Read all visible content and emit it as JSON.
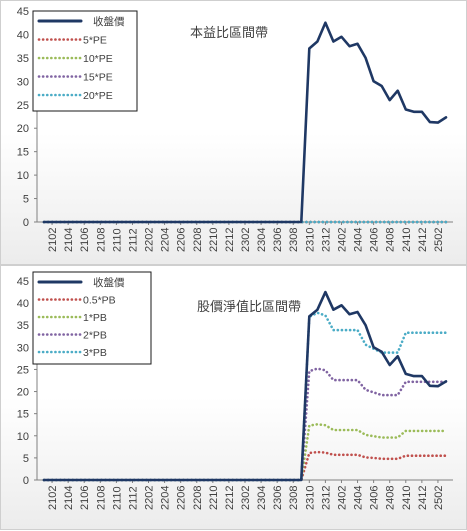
{
  "chart_data": [
    {
      "type": "line",
      "title": "本益比區間帶",
      "xlabel": "",
      "ylabel": "",
      "ylim": [
        0,
        45
      ],
      "yticks": [
        0,
        5,
        10,
        15,
        20,
        25,
        30,
        35,
        40,
        45
      ],
      "x_tick_labels": [
        "2102",
        "2104",
        "2106",
        "2108",
        "2110",
        "2112",
        "2202",
        "2204",
        "2206",
        "2208",
        "2210",
        "2212",
        "2302",
        "2304",
        "2306",
        "2308",
        "2310",
        "2312",
        "2402",
        "2404",
        "2406",
        "2408",
        "2410",
        "2412",
        "2502"
      ],
      "x": [
        "2101",
        "2102",
        "2103",
        "2104",
        "2105",
        "2106",
        "2107",
        "2108",
        "2109",
        "2110",
        "2111",
        "2112",
        "2201",
        "2202",
        "2203",
        "2204",
        "2205",
        "2206",
        "2207",
        "2208",
        "2209",
        "2210",
        "2211",
        "2212",
        "2301",
        "2302",
        "2303",
        "2304",
        "2305",
        "2306",
        "2307",
        "2308",
        "2309",
        "2310",
        "2311",
        "2312",
        "2401",
        "2402",
        "2403",
        "2404",
        "2405",
        "2406",
        "2407",
        "2408",
        "2409",
        "2410",
        "2411",
        "2412",
        "2501",
        "2502",
        "2503"
      ],
      "grid": false,
      "legend": "top-left",
      "series": [
        {
          "name": "收盤價",
          "color": "#1f3864",
          "style": "solid",
          "values": [
            0,
            0,
            0,
            0,
            0,
            0,
            0,
            0,
            0,
            0,
            0,
            0,
            0,
            0,
            0,
            0,
            0,
            0,
            0,
            0,
            0,
            0,
            0,
            0,
            0,
            0,
            0,
            0,
            0,
            0,
            0,
            0,
            0,
            37,
            38.5,
            42.5,
            38.5,
            39.5,
            37.5,
            38,
            35,
            30,
            29,
            26,
            28,
            24,
            23.5,
            23.5,
            21.3,
            21.2,
            22.3
          ]
        },
        {
          "name": "5*PE",
          "color": "#c0504d",
          "style": "dotted",
          "values": [
            0,
            0,
            0,
            0,
            0,
            0,
            0,
            0,
            0,
            0,
            0,
            0,
            0,
            0,
            0,
            0,
            0,
            0,
            0,
            0,
            0,
            0,
            0,
            0,
            0,
            0,
            0,
            0,
            0,
            0,
            0,
            0,
            0,
            0,
            0,
            0,
            0,
            0,
            0,
            0,
            0,
            0,
            0,
            0,
            0,
            0,
            0,
            0,
            0,
            0,
            0
          ]
        },
        {
          "name": "10*PE",
          "color": "#9bbb59",
          "style": "dotted",
          "values": [
            0,
            0,
            0,
            0,
            0,
            0,
            0,
            0,
            0,
            0,
            0,
            0,
            0,
            0,
            0,
            0,
            0,
            0,
            0,
            0,
            0,
            0,
            0,
            0,
            0,
            0,
            0,
            0,
            0,
            0,
            0,
            0,
            0,
            0,
            0,
            0,
            0,
            0,
            0,
            0,
            0,
            0,
            0,
            0,
            0,
            0,
            0,
            0,
            0,
            0,
            0
          ]
        },
        {
          "name": "15*PE",
          "color": "#8064a2",
          "style": "dotted",
          "values": [
            0,
            0,
            0,
            0,
            0,
            0,
            0,
            0,
            0,
            0,
            0,
            0,
            0,
            0,
            0,
            0,
            0,
            0,
            0,
            0,
            0,
            0,
            0,
            0,
            0,
            0,
            0,
            0,
            0,
            0,
            0,
            0,
            0,
            0,
            0,
            0,
            0,
            0,
            0,
            0,
            0,
            0,
            0,
            0,
            0,
            0,
            0,
            0,
            0,
            0,
            0
          ]
        },
        {
          "name": "20*PE",
          "color": "#4bacc6",
          "style": "dotted",
          "values": [
            0,
            0,
            0,
            0,
            0,
            0,
            0,
            0,
            0,
            0,
            0,
            0,
            0,
            0,
            0,
            0,
            0,
            0,
            0,
            0,
            0,
            0,
            0,
            0,
            0,
            0,
            0,
            0,
            0,
            0,
            0,
            0,
            0,
            0,
            0,
            0,
            0,
            0,
            0,
            0,
            0,
            0,
            0,
            0,
            0,
            0,
            0,
            0,
            0,
            0,
            0
          ]
        }
      ]
    },
    {
      "type": "line",
      "title": "股價淨值比區間帶",
      "xlabel": "",
      "ylabel": "",
      "ylim": [
        0,
        45
      ],
      "yticks": [
        0,
        5,
        10,
        15,
        20,
        25,
        30,
        35,
        40,
        45
      ],
      "x_tick_labels": [
        "2102",
        "2104",
        "2106",
        "2108",
        "2110",
        "2112",
        "2202",
        "2204",
        "2206",
        "2208",
        "2210",
        "2212",
        "2302",
        "2304",
        "2306",
        "2308",
        "2310",
        "2312",
        "2402",
        "2404",
        "2406",
        "2408",
        "2410",
        "2412",
        "2502"
      ],
      "x": [
        "2101",
        "2102",
        "2103",
        "2104",
        "2105",
        "2106",
        "2107",
        "2108",
        "2109",
        "2110",
        "2111",
        "2112",
        "2201",
        "2202",
        "2203",
        "2204",
        "2205",
        "2206",
        "2207",
        "2208",
        "2209",
        "2210",
        "2211",
        "2212",
        "2301",
        "2302",
        "2303",
        "2304",
        "2305",
        "2306",
        "2307",
        "2308",
        "2309",
        "2310",
        "2311",
        "2312",
        "2401",
        "2402",
        "2403",
        "2404",
        "2405",
        "2406",
        "2407",
        "2408",
        "2409",
        "2410",
        "2411",
        "2412",
        "2501",
        "2502",
        "2503"
      ],
      "grid": false,
      "legend": "top-left",
      "series": [
        {
          "name": "收盤價",
          "color": "#1f3864",
          "style": "solid",
          "values": [
            0,
            0,
            0,
            0,
            0,
            0,
            0,
            0,
            0,
            0,
            0,
            0,
            0,
            0,
            0,
            0,
            0,
            0,
            0,
            0,
            0,
            0,
            0,
            0,
            0,
            0,
            0,
            0,
            0,
            0,
            0,
            0,
            0,
            37,
            38.5,
            42.5,
            38.5,
            39.5,
            37.5,
            38,
            35,
            30,
            29,
            26,
            28,
            24,
            23.5,
            23.5,
            21.3,
            21.2,
            22.3
          ]
        },
        {
          "name": "0.5*PB",
          "color": "#c0504d",
          "style": "dotted",
          "values": [
            0,
            0,
            0,
            0,
            0,
            0,
            0,
            0,
            0,
            0,
            0,
            0,
            0,
            0,
            0,
            0,
            0,
            0,
            0,
            0,
            0,
            0,
            0,
            0,
            0,
            0,
            0,
            0,
            0,
            0,
            0,
            0,
            0,
            6.1,
            6.3,
            6.2,
            5.7,
            5.7,
            5.7,
            5.7,
            5.1,
            5.0,
            4.8,
            4.8,
            4.8,
            5.5,
            5.5,
            5.5,
            5.5,
            5.5,
            5.5
          ]
        },
        {
          "name": "1*PB",
          "color": "#9bbb59",
          "style": "dotted",
          "values": [
            0,
            0,
            0,
            0,
            0,
            0,
            0,
            0,
            0,
            0,
            0,
            0,
            0,
            0,
            0,
            0,
            0,
            0,
            0,
            0,
            0,
            0,
            0,
            0,
            0,
            0,
            0,
            0,
            0,
            0,
            0,
            0,
            0,
            12.3,
            12.6,
            12.4,
            11.3,
            11.3,
            11.3,
            11.3,
            10.2,
            9.9,
            9.6,
            9.6,
            9.6,
            11.1,
            11.1,
            11.1,
            11.1,
            11.1,
            11.1
          ]
        },
        {
          "name": "2*PB",
          "color": "#8064a2",
          "style": "dotted",
          "values": [
            0,
            0,
            0,
            0,
            0,
            0,
            0,
            0,
            0,
            0,
            0,
            0,
            0,
            0,
            0,
            0,
            0,
            0,
            0,
            0,
            0,
            0,
            0,
            0,
            0,
            0,
            0,
            0,
            0,
            0,
            0,
            0,
            0,
            24.6,
            25.2,
            24.8,
            22.6,
            22.6,
            22.6,
            22.6,
            20.4,
            19.8,
            19.2,
            19.2,
            19.2,
            22.2,
            22.2,
            22.2,
            22.2,
            22.2,
            22.2
          ]
        },
        {
          "name": "3*PB",
          "color": "#4bacc6",
          "style": "dotted",
          "values": [
            0,
            0,
            0,
            0,
            0,
            0,
            0,
            0,
            0,
            0,
            0,
            0,
            0,
            0,
            0,
            0,
            0,
            0,
            0,
            0,
            0,
            0,
            0,
            0,
            0,
            0,
            0,
            0,
            0,
            0,
            0,
            0,
            0,
            36.9,
            37.8,
            37.2,
            33.9,
            33.9,
            33.9,
            33.9,
            30.6,
            29.7,
            28.8,
            28.8,
            28.8,
            33.3,
            33.3,
            33.3,
            33.3,
            33.3,
            33.3
          ]
        }
      ]
    }
  ]
}
